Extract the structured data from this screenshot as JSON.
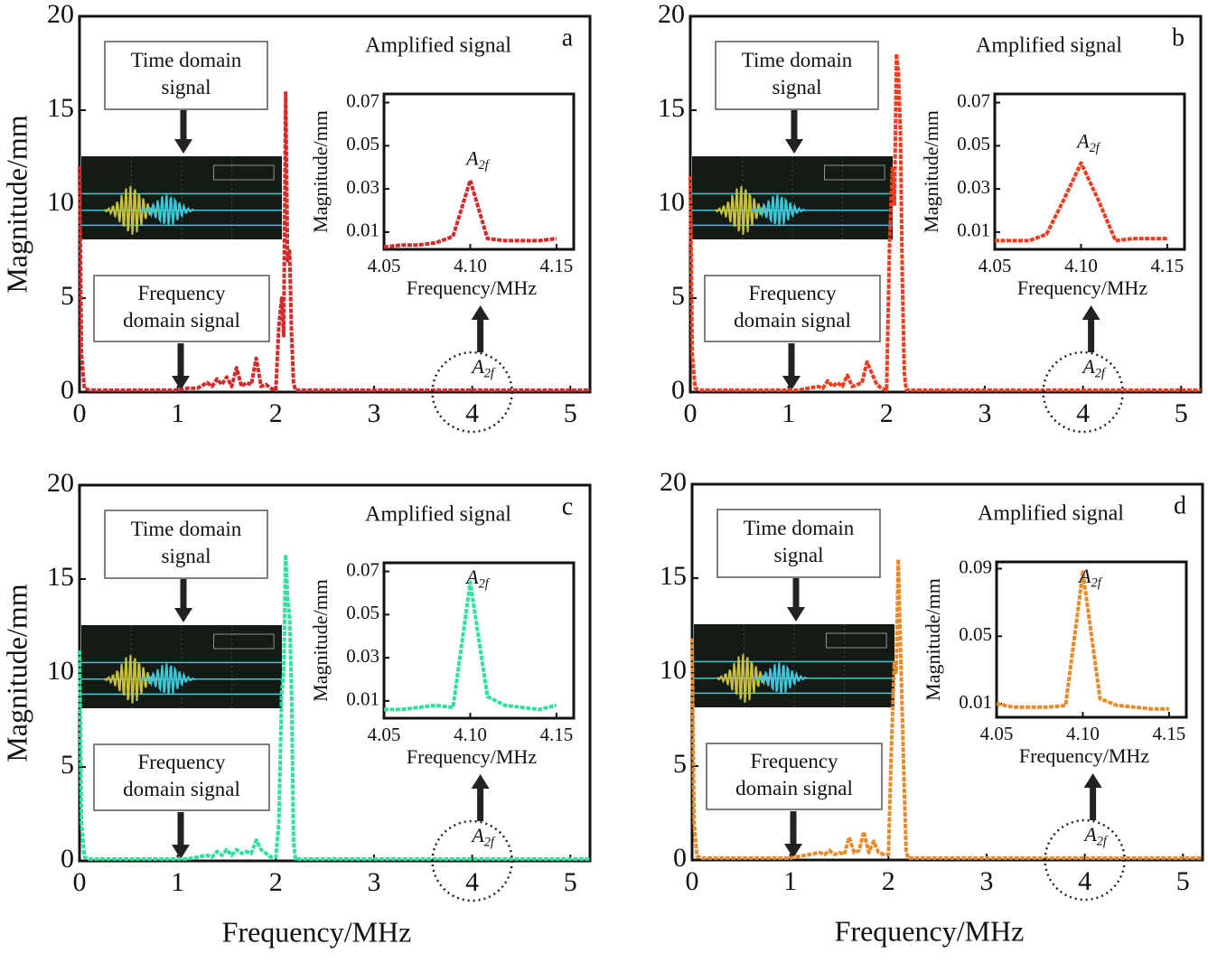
{
  "chart_data": [
    {
      "type": "line",
      "label": "a",
      "ylabel": "Magnitude/mm",
      "color": "#d42a2a",
      "x": [
        0,
        0.02,
        0.05,
        0.1,
        0.3,
        0.5,
        0.8,
        1.0,
        1.1,
        1.2,
        1.3,
        1.35,
        1.4,
        1.45,
        1.5,
        1.55,
        1.6,
        1.65,
        1.7,
        1.75,
        1.8,
        1.85,
        1.9,
        1.95,
        2.0,
        2.03,
        2.06,
        2.08,
        2.1,
        2.12,
        2.14,
        2.16,
        2.18,
        2.2,
        2.25,
        2.5,
        3.0,
        3.5,
        4.0,
        4.5,
        5.0,
        5.2
      ],
      "values": [
        12,
        2,
        0.2,
        0.1,
        0.1,
        0.1,
        0.1,
        0.1,
        0.2,
        0.2,
        0.5,
        0.3,
        0.7,
        0.4,
        0.8,
        0.3,
        1.3,
        0.3,
        0.5,
        0.4,
        1.8,
        0.3,
        0.4,
        0.2,
        0.1,
        3.5,
        5,
        3,
        16,
        7,
        7.5,
        3,
        0.5,
        0.1,
        0.1,
        0.1,
        0.1,
        0.1,
        0.1,
        0.1,
        0.1,
        0.1
      ],
      "xlim": [
        0,
        5.2
      ],
      "ylim": [
        0,
        20
      ],
      "xticks": [
        0,
        1,
        2,
        3,
        4,
        5
      ],
      "yticks": [
        0,
        5,
        10,
        15,
        20
      ],
      "annotations": {
        "time": [
          "Time domain",
          "signal"
        ],
        "frequency": [
          "Frequency",
          "domain signal"
        ],
        "amplified": "Amplified signal",
        "marker": {
          "text": "A",
          "subscript": "2f"
        }
      },
      "inset": {
        "type": "line",
        "x": [
          4.05,
          4.06,
          4.07,
          4.08,
          4.09,
          4.1,
          4.11,
          4.12,
          4.13,
          4.14,
          4.15
        ],
        "values": [
          0.003,
          0.004,
          0.004,
          0.005,
          0.008,
          0.034,
          0.007,
          0.006,
          0.006,
          0.006,
          0.007
        ],
        "xlim": [
          4.05,
          4.16
        ],
        "ylim": [
          0.002,
          0.074
        ],
        "xticks": [
          4.05,
          {
            "value": 4.1,
            "label": "4.10"
          },
          4.15
        ],
        "yticks": [
          0.01,
          0.03,
          0.05,
          0.07
        ],
        "xlabel": "Frequency/MHz",
        "ylabel": "Magnitude/mm",
        "marker": {
          "text": "A",
          "subscript": "2f"
        }
      }
    },
    {
      "type": "line",
      "label": "b",
      "color": "#ef3d1e",
      "x": [
        0,
        0.02,
        0.05,
        0.1,
        0.3,
        0.5,
        0.8,
        1.0,
        1.1,
        1.2,
        1.3,
        1.35,
        1.4,
        1.45,
        1.5,
        1.55,
        1.6,
        1.65,
        1.7,
        1.75,
        1.8,
        1.85,
        1.9,
        1.95,
        2.0,
        2.03,
        2.06,
        2.08,
        2.1,
        2.12,
        2.14,
        2.16,
        2.18,
        2.2,
        2.25,
        2.5,
        3.0,
        3.5,
        4.0,
        4.5,
        5.0,
        5.2
      ],
      "values": [
        11.5,
        2,
        0.2,
        0.1,
        0.1,
        0.1,
        0.1,
        0.1,
        0.1,
        0.2,
        0.3,
        0.2,
        0.6,
        0.3,
        0.5,
        0.3,
        0.9,
        0.3,
        0.4,
        0.5,
        1.6,
        1.0,
        0.4,
        0.2,
        0.1,
        8,
        12,
        10,
        18,
        17,
        14,
        6,
        1,
        0.1,
        0.1,
        0.1,
        0.1,
        0.1,
        0.1,
        0.1,
        0.1,
        0.1
      ],
      "xlim": [
        0,
        5.2
      ],
      "ylim": [
        0,
        20
      ],
      "xticks": [
        0,
        1,
        2,
        3,
        4,
        5
      ],
      "yticks": [
        0,
        5,
        10,
        15,
        20
      ],
      "annotations": {
        "time": [
          "Time domain",
          "signal"
        ],
        "frequency": [
          "Frequency",
          "domain signal"
        ],
        "amplified": "Amplified signal",
        "marker": {
          "text": "A",
          "subscript": "2f"
        }
      },
      "inset": {
        "type": "line",
        "x": [
          4.05,
          4.06,
          4.07,
          4.08,
          4.09,
          4.1,
          4.11,
          4.12,
          4.13,
          4.14,
          4.15
        ],
        "values": [
          0.006,
          0.006,
          0.006,
          0.009,
          0.025,
          0.042,
          0.025,
          0.006,
          0.007,
          0.007,
          0.007
        ],
        "xlim": [
          4.05,
          4.16
        ],
        "ylim": [
          0.002,
          0.074
        ],
        "xticks": [
          4.05,
          {
            "value": 4.1,
            "label": "4.10"
          },
          4.15
        ],
        "yticks": [
          0.01,
          0.03,
          0.05,
          0.07
        ],
        "xlabel": "Frequency/MHz",
        "ylabel": "Magnitude/mm",
        "marker": {
          "text": "A",
          "subscript": "2f"
        }
      }
    },
    {
      "type": "line",
      "label": "c",
      "ylabel": "Magnitude/mm",
      "xlabel": "Frequency/MHz",
      "color": "#2de29a",
      "x": [
        0,
        0.02,
        0.05,
        0.1,
        0.3,
        0.5,
        0.8,
        1.0,
        1.1,
        1.2,
        1.3,
        1.35,
        1.4,
        1.45,
        1.5,
        1.55,
        1.6,
        1.65,
        1.7,
        1.75,
        1.8,
        1.85,
        1.9,
        1.95,
        2.0,
        2.03,
        2.06,
        2.08,
        2.1,
        2.12,
        2.14,
        2.16,
        2.18,
        2.2,
        2.25,
        2.5,
        3.0,
        3.5,
        4.0,
        4.5,
        5.0,
        5.2
      ],
      "values": [
        11.2,
        2,
        0.2,
        0.1,
        0.1,
        0.1,
        0.1,
        0.1,
        0.1,
        0.2,
        0.3,
        0.2,
        0.5,
        0.3,
        0.6,
        0.3,
        0.6,
        0.4,
        0.5,
        0.4,
        1.1,
        0.6,
        0.4,
        0.2,
        0.2,
        2,
        9,
        10,
        16.3,
        14,
        13,
        9,
        1,
        0.1,
        0.1,
        0.1,
        0.1,
        0.1,
        0.1,
        0.1,
        0.1,
        0.1
      ],
      "xlim": [
        0,
        5.2
      ],
      "ylim": [
        0,
        20
      ],
      "xticks": [
        0,
        1,
        2,
        3,
        4,
        5
      ],
      "yticks": [
        0,
        5,
        10,
        15,
        20
      ],
      "annotations": {
        "time": [
          "Time domain",
          "signal"
        ],
        "frequency": [
          "Frequency",
          "domain signal"
        ],
        "amplified": "Amplified signal",
        "marker": {
          "text": "A",
          "subscript": "2f"
        }
      },
      "inset": {
        "type": "line",
        "x": [
          4.05,
          4.06,
          4.07,
          4.08,
          4.09,
          4.1,
          4.11,
          4.12,
          4.13,
          4.14,
          4.15
        ],
        "values": [
          0.006,
          0.006,
          0.007,
          0.008,
          0.007,
          0.065,
          0.012,
          0.008,
          0.007,
          0.006,
          0.008
        ],
        "xlim": [
          4.05,
          4.16
        ],
        "ylim": [
          0.002,
          0.074
        ],
        "xticks": [
          4.05,
          {
            "value": 4.1,
            "label": "4.10"
          },
          4.15
        ],
        "yticks": [
          0.01,
          0.03,
          0.05,
          0.07
        ],
        "xlabel": "Frequency/MHz",
        "ylabel": "Magnitude/mm",
        "marker": {
          "text": "A",
          "subscript": "2f"
        }
      }
    },
    {
      "type": "line",
      "label": "d",
      "xlabel": "Frequency/MHz",
      "color": "#e88a2a",
      "x": [
        0,
        0.02,
        0.05,
        0.1,
        0.3,
        0.5,
        0.8,
        1.0,
        1.1,
        1.2,
        1.3,
        1.35,
        1.4,
        1.45,
        1.5,
        1.55,
        1.6,
        1.65,
        1.7,
        1.75,
        1.8,
        1.85,
        1.9,
        1.95,
        2.0,
        2.03,
        2.06,
        2.08,
        2.1,
        2.12,
        2.14,
        2.16,
        2.18,
        2.2,
        2.25,
        2.5,
        3.0,
        3.5,
        4.0,
        4.5,
        5.0,
        5.2
      ],
      "values": [
        11.8,
        2,
        0.2,
        0.1,
        0.1,
        0.1,
        0.1,
        0.1,
        0.2,
        0.3,
        0.4,
        0.3,
        0.5,
        0.3,
        0.4,
        0.3,
        1.2,
        0.4,
        0.5,
        1.5,
        0.4,
        1.0,
        0.4,
        0.3,
        0.3,
        6,
        10.5,
        10,
        16,
        12,
        8,
        4,
        0.5,
        0.1,
        0.1,
        0.1,
        0.1,
        0.1,
        0.1,
        0.1,
        0.1,
        0.1
      ],
      "xlim": [
        0,
        5.2
      ],
      "ylim": [
        0,
        20
      ],
      "xticks": [
        0,
        1,
        2,
        3,
        4,
        5
      ],
      "yticks": [
        0,
        5,
        10,
        15,
        20
      ],
      "annotations": {
        "time": [
          "Time domain",
          "signal"
        ],
        "frequency": [
          "Frequency",
          "domain signal"
        ],
        "amplified": "Amplified signal",
        "marker": {
          "text": "A",
          "subscript": "2f"
        }
      },
      "inset": {
        "type": "line",
        "x": [
          4.05,
          4.06,
          4.07,
          4.08,
          4.09,
          4.1,
          4.11,
          4.12,
          4.13,
          4.14,
          4.15
        ],
        "values": [
          0.01,
          0.008,
          0.008,
          0.008,
          0.009,
          0.088,
          0.013,
          0.009,
          0.008,
          0.007,
          0.007
        ],
        "xlim": [
          4.05,
          4.16
        ],
        "ylim": [
          0.002,
          0.094
        ],
        "xticks": [
          4.05,
          {
            "value": 4.1,
            "label": "4.10"
          },
          4.15
        ],
        "yticks": [
          0.01,
          0.05,
          0.09
        ],
        "xlabel": "Frequency/MHz",
        "ylabel": "Magnitude/mm",
        "marker": {
          "text": "A",
          "subscript": "2f"
        }
      }
    }
  ]
}
